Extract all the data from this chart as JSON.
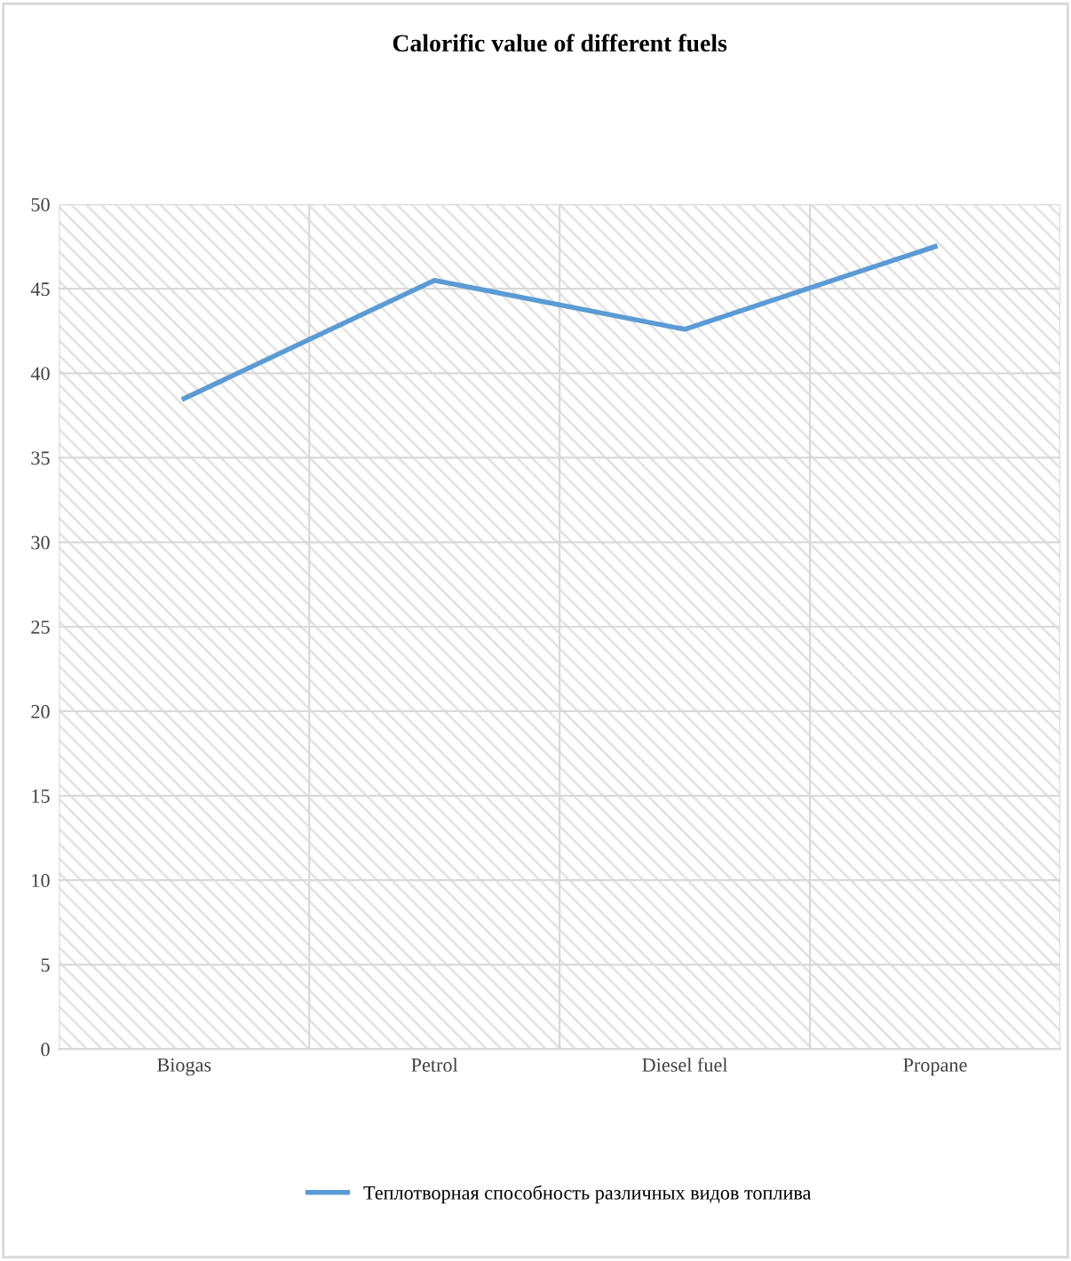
{
  "chart_data": {
    "type": "line",
    "title": "Calorific value of different fuels",
    "categories": [
      "Biogas",
      "Petrol",
      "Diesel fuel",
      "Propane"
    ],
    "series": [
      {
        "name": "Теплотворная способность различных видов топлива",
        "color": "#5b9bd5",
        "values": [
          38.5,
          45.5,
          42.6,
          47.5
        ]
      }
    ],
    "ylim": [
      0,
      50
    ],
    "yticks": [
      0,
      5,
      10,
      15,
      20,
      25,
      30,
      35,
      40,
      45,
      50
    ],
    "grid": true,
    "legend": "bottom",
    "marker": "none",
    "line_style": "solid"
  }
}
